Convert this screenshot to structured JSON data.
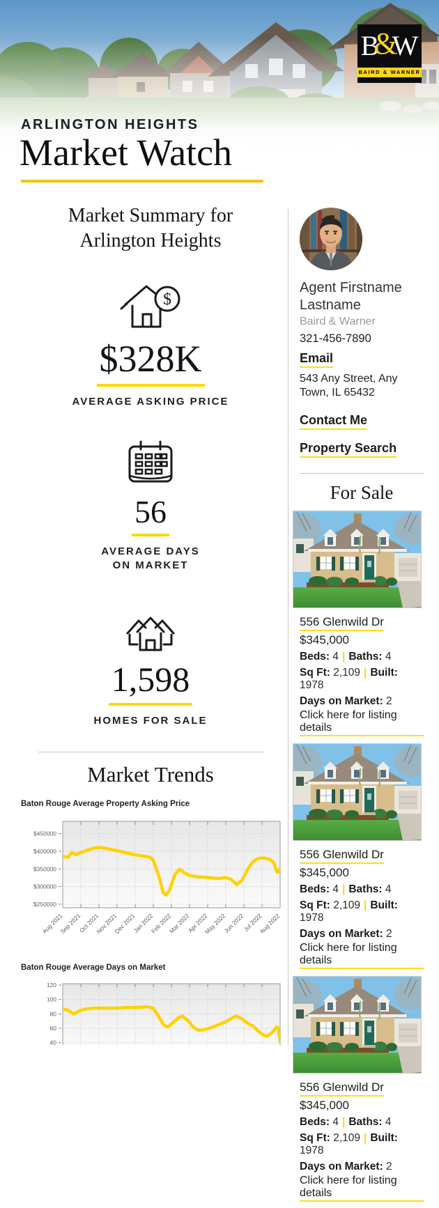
{
  "theme": {
    "brand_yellow": "#ffd520",
    "underline_yellow": "#ffde14",
    "chart_line_yellow": "#ffd200",
    "text_dark": "#1c1c1c"
  },
  "brand": {
    "logo_b": "B",
    "logo_amp": "&",
    "logo_w": "W",
    "logo_band": "BAIRD & WARNER"
  },
  "header": {
    "location": "ARLINGTON HEIGHTS",
    "title": "Market Watch"
  },
  "summary": {
    "title_line1": "Market Summary for",
    "title_line2": "Arlington Heights",
    "dollar_glyph": "$",
    "stats": [
      {
        "value": "$328K",
        "label": "AVERAGE ASKING PRICE"
      },
      {
        "value": "56",
        "label_line1": "AVERAGE DAYS",
        "label_line2": "ON MARKET"
      },
      {
        "value": "1,598",
        "label": "HOMES FOR SALE"
      }
    ]
  },
  "trends": {
    "title": "Market Trends"
  },
  "chart_data": [
    {
      "type": "line",
      "title": "Baton Rouge Average Property Asking Price",
      "x_labels": [
        "Aug 2021",
        "Sep 2021",
        "Oct 2021",
        "Nov 2021",
        "Dec 2021",
        "Jan 2022",
        "Feb 2022",
        "Mar 2022",
        "Apr 2022",
        "May 2022",
        "Jun 2022",
        "Jul 2022",
        "Aug 2022"
      ],
      "ylim": [
        240000,
        485000
      ],
      "yticks": [
        450000,
        400000,
        350000,
        300000,
        250000
      ],
      "ytick_labels": [
        "$450000",
        "$400000",
        "$350000",
        "$300000",
        "$250000"
      ],
      "grid": true,
      "legend": "none",
      "series": [
        {
          "name": "average asking price",
          "color": "#ffd200",
          "points": [
            [
              0,
              386000
            ],
            [
              0.3,
              383000
            ],
            [
              0.5,
              397000
            ],
            [
              0.7,
              391000
            ],
            [
              1,
              396000
            ],
            [
              1.4,
              404000
            ],
            [
              1.8,
              410000
            ],
            [
              2.1,
              411000
            ],
            [
              2.5,
              407000
            ],
            [
              3,
              402000
            ],
            [
              3.5,
              396000
            ],
            [
              4,
              390000
            ],
            [
              4.4,
              387000
            ],
            [
              4.8,
              384000
            ],
            [
              5,
              375000
            ],
            [
              5.3,
              330000
            ],
            [
              5.55,
              282000
            ],
            [
              5.7,
              276000
            ],
            [
              5.9,
              290000
            ],
            [
              6.2,
              335000
            ],
            [
              6.45,
              349000
            ],
            [
              6.7,
              340000
            ],
            [
              7,
              331000
            ],
            [
              7.4,
              328000
            ],
            [
              7.8,
              327000
            ],
            [
              8.2,
              325000
            ],
            [
              8.6,
              323000
            ],
            [
              9,
              326000
            ],
            [
              9.3,
              320000
            ],
            [
              9.6,
              306000
            ],
            [
              9.9,
              318000
            ],
            [
              10.2,
              348000
            ],
            [
              10.5,
              371000
            ],
            [
              10.8,
              380000
            ],
            [
              11.1,
              381000
            ],
            [
              11.4,
              378000
            ],
            [
              11.65,
              368000
            ],
            [
              11.8,
              343000
            ],
            [
              11.9,
              341000
            ],
            [
              12,
              352000
            ]
          ]
        }
      ]
    },
    {
      "type": "line",
      "title": "Baton Rouge Average Days on Market",
      "x_labels": [
        "Aug 2021",
        "Sep 2021",
        "Oct 2021",
        "Nov 2021",
        "Dec 2021",
        "Jan 2022",
        "Feb 2022",
        "Mar 2022",
        "Apr 2022",
        "May 2022",
        "Jun 2022",
        "Jul 2022",
        "Aug 2022"
      ],
      "ylim": [
        30,
        122
      ],
      "yticks": [
        120,
        100,
        80,
        60,
        40
      ],
      "ytick_labels": [
        "120",
        "100",
        "80",
        "60",
        "40"
      ],
      "grid": true,
      "legend": "none",
      "series": [
        {
          "name": "average days on market",
          "color": "#ffd200",
          "points": [
            [
              0,
              87
            ],
            [
              0.3,
              85
            ],
            [
              0.6,
              80
            ],
            [
              0.9,
              84
            ],
            [
              1.3,
              87
            ],
            [
              1.8,
              88
            ],
            [
              2.4,
              88
            ],
            [
              3,
              88
            ],
            [
              3.6,
              89
            ],
            [
              4.2,
              89
            ],
            [
              4.7,
              90
            ],
            [
              5,
              88
            ],
            [
              5.3,
              76
            ],
            [
              5.6,
              64
            ],
            [
              5.8,
              62
            ],
            [
              6.1,
              68
            ],
            [
              6.4,
              75
            ],
            [
              6.6,
              77
            ],
            [
              6.9,
              71
            ],
            [
              7.2,
              62
            ],
            [
              7.5,
              57
            ],
            [
              7.8,
              58
            ],
            [
              8.1,
              60
            ],
            [
              8.5,
              64
            ],
            [
              9,
              69
            ],
            [
              9.4,
              75
            ],
            [
              9.6,
              77
            ],
            [
              9.9,
              73
            ],
            [
              10.2,
              67
            ],
            [
              10.5,
              63
            ],
            [
              10.8,
              56
            ],
            [
              11.1,
              50
            ],
            [
              11.3,
              49
            ],
            [
              11.6,
              55
            ],
            [
              11.8,
              62
            ],
            [
              11.9,
              60
            ],
            [
              11.97,
              48
            ],
            [
              12,
              41
            ]
          ]
        }
      ]
    }
  ],
  "agent": {
    "name": "Agent Firstname Lastname",
    "company": "Baird & Warner",
    "phone": "321-456-7890",
    "email_label": "Email",
    "address": "543 Any Street, Any Town, IL 65432",
    "contact_label": "Contact Me",
    "search_label": "Property Search"
  },
  "sidebar": {
    "for_sale_title": "For Sale",
    "listing_labels": {
      "beds": "Beds:",
      "baths": "Baths:",
      "sqft": "Sq Ft:",
      "built": "Built:",
      "dom": "Days on Market:",
      "sep": "|"
    },
    "listings": [
      {
        "address": "556 Glenwild Dr",
        "price": "$345,000",
        "beds": "4",
        "baths": "4",
        "sqft": "2,109",
        "built": "1978",
        "dom": "2",
        "link": "Click here for listing details"
      },
      {
        "address": "556 Glenwild Dr",
        "price": "$345,000",
        "beds": "4",
        "baths": "4",
        "sqft": "2,109",
        "built": "1978",
        "dom": "2",
        "link": "Click here for listing details"
      },
      {
        "address": "556 Glenwild Dr",
        "price": "$345,000",
        "beds": "4",
        "baths": "4",
        "sqft": "2,109",
        "built": "1978",
        "dom": "2",
        "link": "Click here for listing details"
      }
    ]
  }
}
